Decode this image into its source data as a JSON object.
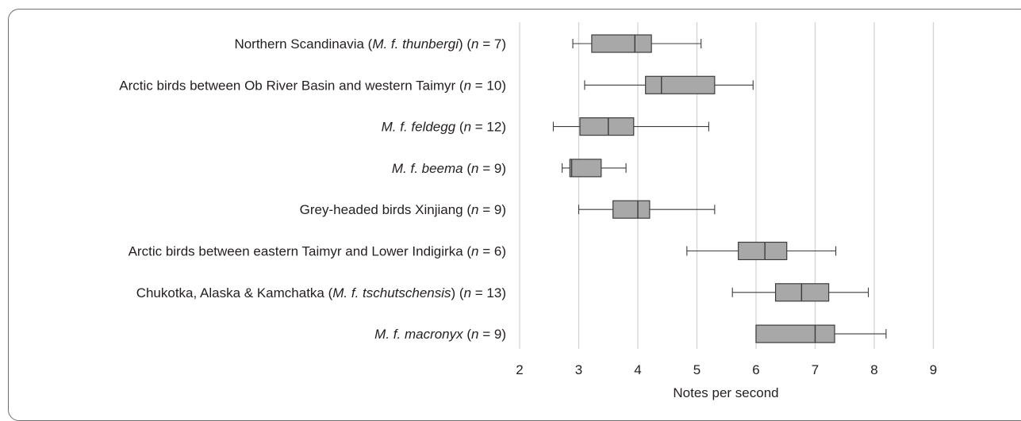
{
  "chart_data": {
    "type": "boxplot",
    "xlabel": "Notes per second",
    "xlim": [
      2,
      9.3
    ],
    "xticks": [
      "2",
      "3",
      "4",
      "5",
      "6",
      "7",
      "8",
      "9"
    ],
    "grid": true,
    "categories": [
      {
        "segments": [
          {
            "text": "Northern Scandinavia ("
          },
          {
            "text": "M. f. thunbergi",
            "italic": true
          },
          {
            "text": ") ("
          },
          {
            "text": "n",
            "italic": true
          },
          {
            "text": " = 7)"
          }
        ]
      },
      {
        "segments": [
          {
            "text": "Arctic birds between Ob River Basin and western Taimyr ("
          },
          {
            "text": "n",
            "italic": true
          },
          {
            "text": " = 10)"
          }
        ]
      },
      {
        "segments": [
          {
            "text": "M. f. feldegg",
            "italic": true
          },
          {
            "text": " ("
          },
          {
            "text": "n",
            "italic": true
          },
          {
            "text": " = 12)"
          }
        ]
      },
      {
        "segments": [
          {
            "text": "M. f. beema",
            "italic": true
          },
          {
            "text": " ("
          },
          {
            "text": "n",
            "italic": true
          },
          {
            "text": " = 9)"
          }
        ]
      },
      {
        "segments": [
          {
            "text": "Grey-headed birds Xinjiang ("
          },
          {
            "text": "n",
            "italic": true
          },
          {
            "text": " = 9)"
          }
        ]
      },
      {
        "segments": [
          {
            "text": "Arctic birds between eastern Taimyr and Lower Indigirka ("
          },
          {
            "text": "n",
            "italic": true
          },
          {
            "text": " = 6)"
          }
        ]
      },
      {
        "segments": [
          {
            "text": "Chukotka, Alaska & Kamchatka ("
          },
          {
            "text": "M. f. tschutschensis",
            "italic": true
          },
          {
            "text": ") ("
          },
          {
            "text": "n",
            "italic": true
          },
          {
            "text": " = 13)"
          }
        ]
      },
      {
        "segments": [
          {
            "text": "M. f. macronyx",
            "italic": true
          },
          {
            "text": " ("
          },
          {
            "text": "n",
            "italic": true
          },
          {
            "text": " = 9)"
          }
        ]
      }
    ],
    "boxes": [
      {
        "min": 2.9,
        "q1": 3.22,
        "median": 3.95,
        "q3": 4.23,
        "max": 5.07
      },
      {
        "min": 3.1,
        "q1": 4.13,
        "median": 4.4,
        "q3": 5.3,
        "max": 5.95
      },
      {
        "min": 2.57,
        "q1": 3.02,
        "median": 3.5,
        "q3": 3.93,
        "max": 5.2
      },
      {
        "min": 2.72,
        "q1": 2.85,
        "median": 2.88,
        "q3": 3.38,
        "max": 3.8
      },
      {
        "min": 3.0,
        "q1": 3.58,
        "median": 4.0,
        "q3": 4.2,
        "max": 5.3
      },
      {
        "min": 4.83,
        "q1": 5.7,
        "median": 6.15,
        "q3": 6.52,
        "max": 7.35
      },
      {
        "min": 5.6,
        "q1": 6.33,
        "median": 6.77,
        "q3": 7.23,
        "max": 7.9
      },
      {
        "min": 6.0,
        "q1": 6.0,
        "median": 7.0,
        "q3": 7.33,
        "max": 8.2
      }
    ],
    "colors": {
      "box_fill": "#a8a8a8",
      "box_stroke": "#3c3c3c",
      "grid": "#d4d4d4",
      "text": "#231f20"
    }
  }
}
